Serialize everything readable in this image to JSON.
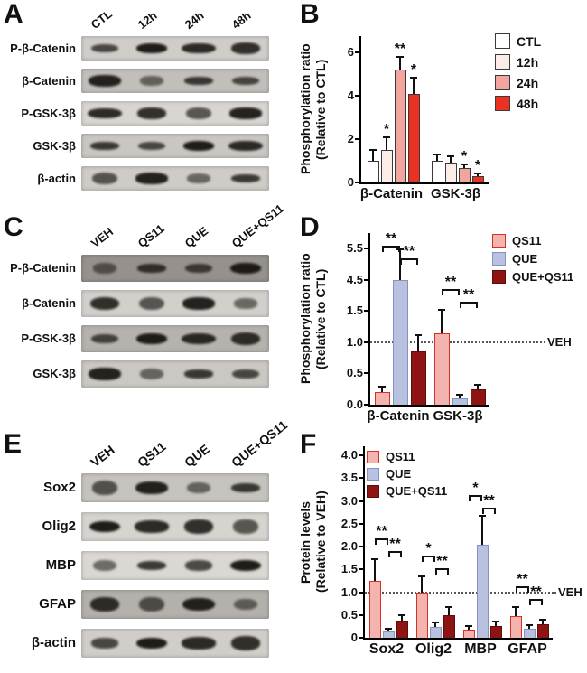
{
  "panels": {
    "A": {
      "letter": "A",
      "lanes": [
        "CTL",
        "12h",
        "24h",
        "48h"
      ],
      "rows": [
        "P-β-Catenin",
        "β-Catenin",
        "P-GSK-3β",
        "GSK-3β",
        "β-actin"
      ]
    },
    "B": {
      "letter": "B"
    },
    "C": {
      "letter": "C",
      "lanes": [
        "VEH",
        "QS11",
        "QUE",
        "QUE+QS11"
      ],
      "rows": [
        "P-β-Catenin",
        "β-Catenin",
        "P-GSK-3β",
        "GSK-3β"
      ]
    },
    "D": {
      "letter": "D"
    },
    "E": {
      "letter": "E",
      "lanes": [
        "VEH",
        "QS11",
        "QUE",
        "QUE+QS11"
      ],
      "rows": [
        "Sox2",
        "Olig2",
        "MBP",
        "GFAP",
        "β-actin"
      ]
    },
    "F": {
      "letter": "F"
    }
  },
  "chart_data": [
    {
      "id": "B",
      "type": "bar",
      "title": "",
      "ylabel_lines": [
        "Phosphorylation ratio",
        "(Relative to CTL)"
      ],
      "categories": [
        "β-Catenin",
        "GSK-3β"
      ],
      "series": [
        {
          "name": "CTL",
          "fill": "#ffffff",
          "border": "#3a3a3a",
          "values": [
            1.0,
            1.0
          ],
          "errors": [
            0.45,
            0.25
          ]
        },
        {
          "name": "12h",
          "fill": "#fbece7",
          "border": "#3a3a3a",
          "values": [
            1.5,
            0.9
          ],
          "errors": [
            0.55,
            0.25
          ]
        },
        {
          "name": "24h",
          "fill": "#f2a49e",
          "border": "#3a3a3a",
          "values": [
            5.2,
            0.65
          ],
          "errors": [
            0.55,
            0.15
          ]
        },
        {
          "name": "48h",
          "fill": "#ea3223",
          "border": "#3a3a3a",
          "values": [
            4.1,
            0.28
          ],
          "errors": [
            0.7,
            0.1
          ]
        }
      ],
      "ytick_values": [
        0,
        2,
        4,
        6
      ],
      "ytick_labels": [
        "0",
        "2",
        "4",
        "6"
      ],
      "sig_marks": [
        {
          "cat": 0,
          "series": 1,
          "label": "*"
        },
        {
          "cat": 0,
          "series": 2,
          "label": "**"
        },
        {
          "cat": 0,
          "series": 3,
          "label": "*"
        },
        {
          "cat": 1,
          "series": 2,
          "label": "*"
        },
        {
          "cat": 1,
          "series": 3,
          "label": "*"
        }
      ],
      "brackets": [],
      "ref_line": null,
      "legend_position": "right-outside"
    },
    {
      "id": "D",
      "type": "bar",
      "title": "",
      "ylabel_lines": [
        "Phosphorylation ratio",
        "(Relative to CTL)"
      ],
      "categories": [
        "β-Catenin",
        "GSK-3β"
      ],
      "series": [
        {
          "name": "QS11",
          "fill": "#f3b3ae",
          "border": "#d93025",
          "values": [
            0.2,
            1.15
          ],
          "errors": [
            0.08,
            0.35
          ]
        },
        {
          "name": "QUE",
          "fill": "#b8c1e0",
          "border": "#8591bf",
          "values": [
            4.5,
            0.1
          ],
          "errors": [
            0.95,
            0.04
          ]
        },
        {
          "name": "QUE+QS11",
          "fill": "#8e1414",
          "border": "#5e0d0d",
          "values": [
            0.85,
            0.25
          ],
          "errors": [
            0.25,
            0.06
          ]
        }
      ],
      "ytick_values": [
        0,
        0.5,
        1.0,
        1.5,
        4.5,
        5.5
      ],
      "ytick_labels": [
        "0.0",
        "0.5",
        "1.0",
        "1.5",
        "4.5",
        "5.5"
      ],
      "scale_note": "y-axis break between 1.5 and 4.5",
      "sig_marks": [],
      "brackets": [
        {
          "cat": 0,
          "from": 0,
          "to": 1,
          "label": "**",
          "row": 0
        },
        {
          "cat": 0,
          "from": 1,
          "to": 2,
          "label": "**",
          "row": 1
        },
        {
          "cat": 1,
          "from": 0,
          "to": 1,
          "label": "**",
          "row": 0
        },
        {
          "cat": 1,
          "from": 1,
          "to": 2,
          "label": "**",
          "row": 1
        }
      ],
      "ref_line": {
        "value": 1.0,
        "label": "VEH"
      },
      "legend_position": "right-outside"
    },
    {
      "id": "F",
      "type": "bar",
      "title": "",
      "ylabel_lines": [
        "Protein levels",
        "(Relative to VEH)"
      ],
      "categories": [
        "Sox2",
        "Olig2",
        "MBP",
        "GFAP"
      ],
      "series": [
        {
          "name": "QS11",
          "fill": "#f3b3ae",
          "border": "#d93025",
          "values": [
            1.25,
            1.0,
            0.18,
            0.48
          ],
          "errors": [
            0.45,
            0.32,
            0.06,
            0.18
          ]
        },
        {
          "name": "QUE",
          "fill": "#b8c1e0",
          "border": "#8591bf",
          "values": [
            0.13,
            0.23,
            2.05,
            0.2
          ],
          "errors": [
            0.04,
            0.08,
            0.6,
            0.05
          ]
        },
        {
          "name": "QUE+QS11",
          "fill": "#8e1414",
          "border": "#5e0d0d",
          "values": [
            0.38,
            0.5,
            0.25,
            0.3
          ],
          "errors": [
            0.1,
            0.15,
            0.08,
            0.08
          ]
        }
      ],
      "ytick_values": [
        0,
        0.5,
        1,
        1.5,
        2,
        2.5,
        3,
        3.5,
        4
      ],
      "ytick_labels": [
        "0",
        "0.5",
        "1.0",
        "1.5",
        "2.0",
        "2.5",
        "3.0",
        "3.5",
        "4.0"
      ],
      "sig_marks": [],
      "brackets": [
        {
          "cat": 0,
          "from": 0,
          "to": 1,
          "label": "**",
          "row": 0
        },
        {
          "cat": 0,
          "from": 1,
          "to": 2,
          "label": "**",
          "row": 1
        },
        {
          "cat": 1,
          "from": 0,
          "to": 1,
          "label": "*",
          "row": 0
        },
        {
          "cat": 1,
          "from": 1,
          "to": 2,
          "label": "**",
          "row": 1
        },
        {
          "cat": 2,
          "from": 0,
          "to": 1,
          "label": "*",
          "row": 0
        },
        {
          "cat": 2,
          "from": 1,
          "to": 2,
          "label": "**",
          "row": 1
        },
        {
          "cat": 3,
          "from": 0,
          "to": 1,
          "label": "**",
          "row": 0
        },
        {
          "cat": 3,
          "from": 1,
          "to": 2,
          "label": "**",
          "row": 1
        }
      ],
      "ref_line": {
        "value": 1.0,
        "label": "VEH"
      },
      "legend_position": "top-left-inside"
    }
  ]
}
